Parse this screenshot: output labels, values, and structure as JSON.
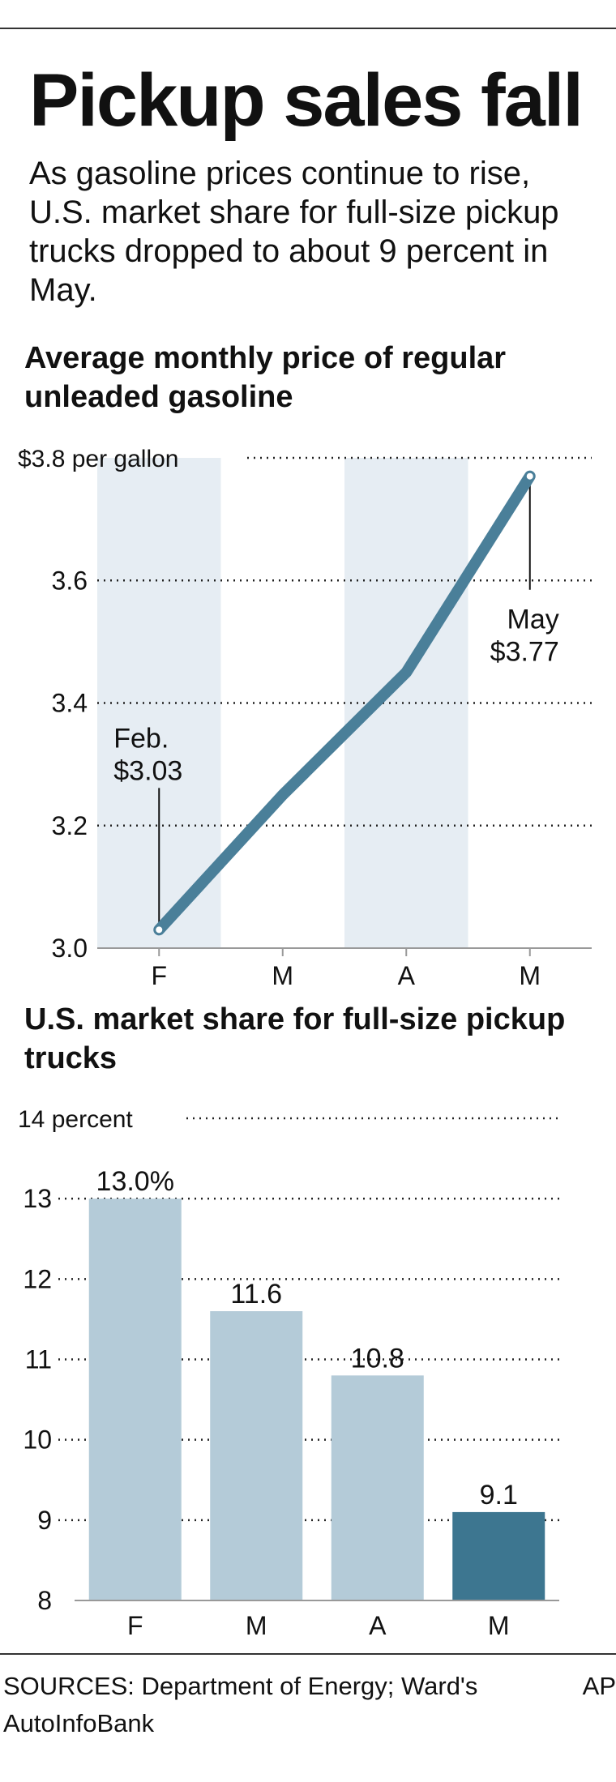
{
  "header": {
    "title": "Pickup sales fall",
    "subtitle": "As gasoline prices continue to rise, U.S. market share for full-size pickup trucks dropped to about 9 percent in May."
  },
  "colors": {
    "line": "#4a7f99",
    "bar": "#b4cbd8",
    "bar_highlight": "#3d7690",
    "band": "#e6edf3",
    "grid": "#222222"
  },
  "chart_data": [
    {
      "type": "line",
      "title": "Average monthly price of regular unleaded gasoline",
      "unit_label": "$3.8 per gallon",
      "categories": [
        "F",
        "M",
        "A",
        "M"
      ],
      "values": [
        3.03,
        3.25,
        3.45,
        3.77
      ],
      "ylim": [
        3.0,
        3.8
      ],
      "yticks": [
        3.0,
        3.2,
        3.4,
        3.6,
        3.8
      ],
      "ytick_labels": [
        "3.0",
        "3.2",
        "3.4",
        "3.6",
        "$3.8 per gallon"
      ],
      "grid": true,
      "shaded_categories": [
        0,
        2
      ],
      "annotations": [
        {
          "index": 0,
          "line1": "Feb.",
          "line2": "$3.03"
        },
        {
          "index": 3,
          "line1": "May",
          "line2": "$3.77"
        }
      ]
    },
    {
      "type": "bar",
      "title": "U.S. market share for full-size pickup trucks",
      "unit_label": "14 percent",
      "categories": [
        "F",
        "M",
        "A",
        "M"
      ],
      "values": [
        13.0,
        11.6,
        10.8,
        9.1
      ],
      "value_labels": [
        "13.0%",
        "11.6",
        "10.8",
        "9.1"
      ],
      "ylim": [
        8,
        14
      ],
      "yticks": [
        8,
        9,
        10,
        11,
        12,
        13,
        14
      ],
      "ytick_labels": [
        "8",
        "9",
        "10",
        "11",
        "12",
        "13",
        "14 percent"
      ],
      "grid": true,
      "highlight_index": 3
    }
  ],
  "footer": {
    "sources": "SOURCES: Department of Energy; Ward's AutoInfoBank",
    "credit": "AP"
  }
}
